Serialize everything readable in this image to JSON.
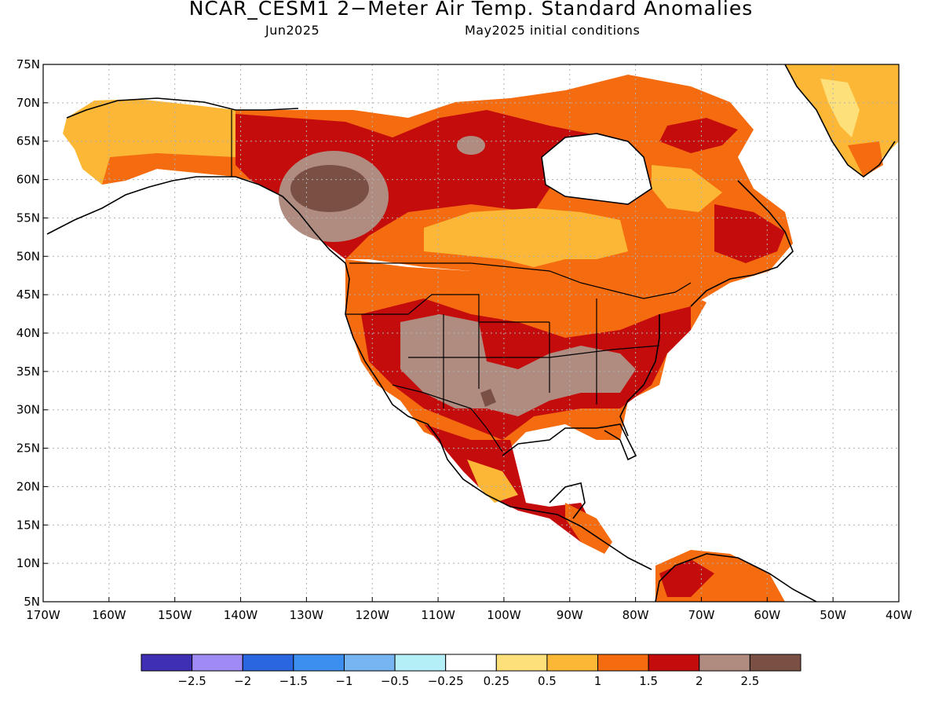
{
  "title": "NCAR_CESM1 2−Meter Air Temp. Standard Anomalies",
  "valid_month": "Jun2025",
  "init_conditions": "May2025 initial conditions",
  "lat_labels": [
    "75N",
    "70N",
    "65N",
    "60N",
    "55N",
    "50N",
    "45N",
    "40N",
    "35N",
    "30N",
    "25N",
    "20N",
    "15N",
    "10N",
    "5N"
  ],
  "lon_labels": [
    "170W",
    "160W",
    "150W",
    "140W",
    "130W",
    "120W",
    "110W",
    "100W",
    "90W",
    "80W",
    "70W",
    "60W",
    "50W",
    "40W"
  ],
  "colorbar": {
    "labels": [
      "−2.5",
      "−2",
      "−1.5",
      "−1",
      "−0.5",
      "−0.25",
      "0.25",
      "0.5",
      "1",
      "1.5",
      "2",
      "2.5"
    ],
    "colors": [
      "#3f2fb4",
      "#a08bf5",
      "#2a66e0",
      "#3d8fef",
      "#76b5f2",
      "#b4eef7",
      "#ffffff",
      "#fde07a",
      "#fbb735",
      "#f56b0f",
      "#c50c0d",
      "#b08c80",
      "#7a5045"
    ]
  },
  "map_colors": {
    "background": "#ffffff",
    "grid": "#b0b0b0",
    "coast": "#000000"
  }
}
